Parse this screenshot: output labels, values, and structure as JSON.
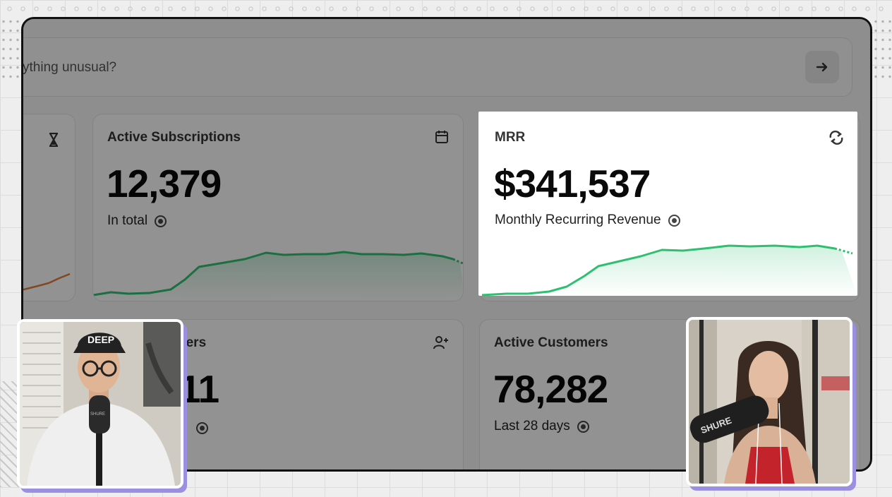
{
  "prompt": {
    "text": "ything unusual?"
  },
  "cards": {
    "subscriptions": {
      "title": "Active Subscriptions",
      "value": "12,379",
      "subtitle": "In total",
      "icon": "calendar-icon"
    },
    "mrr": {
      "title": "MRR",
      "value": "$341,537",
      "subtitle": "Monthly Recurring Revenue",
      "icon": "refresh-icon"
    },
    "new_customers": {
      "title": "ners",
      "value": "11",
      "icon": "user-plus-icon"
    },
    "customers": {
      "title": "Active Customers",
      "value": "78,282",
      "subtitle": "Last 28 days"
    }
  },
  "colors": {
    "accent_green": "#2fbf71",
    "accent_orange": "#e07a3a",
    "cam_shadow": "#9b8fe0"
  },
  "webcams": {
    "left": {
      "cap_text": "DEEP",
      "mic_brand": "SHURE"
    },
    "right": {
      "mic_brand": "SHURE"
    }
  }
}
